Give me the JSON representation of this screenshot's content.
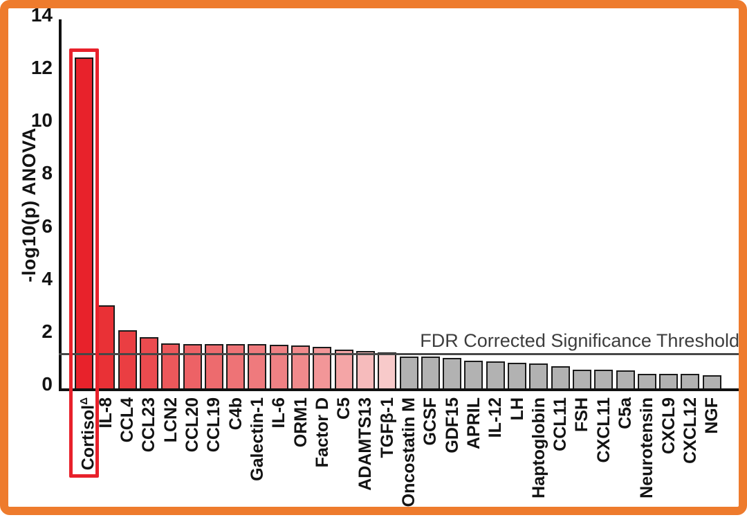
{
  "frame": {
    "border_color": "#ee7b2d",
    "background": "#ffffff"
  },
  "chart_data": {
    "type": "bar",
    "ylabel": "-log10(p) ANOVA",
    "xlabel": "",
    "ylim": [
      0,
      14
    ],
    "y_ticks": [
      0,
      2,
      4,
      6,
      8,
      10,
      12,
      14
    ],
    "grid": false,
    "legend": false,
    "categories": [
      "Cortisol",
      "IL-8",
      "CCL4",
      "CCL23",
      "LCN2",
      "CCL20",
      "CCL19",
      "C4b",
      "Galectin-1",
      "IL-6",
      "ORM1",
      "Factor D",
      "C5",
      "ADAMTS13",
      "TGFβ-1",
      "Oncostatin M",
      "GCSF",
      "GDF15",
      "APRIL",
      "IL-12",
      "LH",
      "Haptoglobin",
      "CCL11",
      "FSH",
      "CXCL11",
      "C5a",
      "Neurotensin",
      "CXCL9",
      "CXCL12",
      "NGF"
    ],
    "values": [
      12.55,
      3.15,
      2.2,
      1.95,
      1.72,
      1.68,
      1.68,
      1.68,
      1.67,
      1.65,
      1.62,
      1.57,
      1.47,
      1.41,
      1.36,
      1.22,
      1.22,
      1.15,
      1.05,
      1.02,
      0.97,
      0.94,
      0.84,
      0.72,
      0.71,
      0.68,
      0.56,
      0.55,
      0.55,
      0.5
    ],
    "bar_colors": [
      "#e8222b",
      "#e93136",
      "#ea3e42",
      "#eb4b4f",
      "#ec585b",
      "#ed6266",
      "#ed6b6e",
      "#ee7376",
      "#ef7a7d",
      "#ef8184",
      "#f08a8c",
      "#f29698",
      "#f4a5a6",
      "#f6bbbc",
      "#f8caca",
      "#b2b2b2",
      "#b2b2b2",
      "#b2b2b2",
      "#b2b2b2",
      "#b2b2b2",
      "#b2b2b2",
      "#b2b2b2",
      "#b2b2b2",
      "#b2b2b2",
      "#b2b2b2",
      "#b2b2b2",
      "#b2b2b2",
      "#b2b2b2",
      "#b2b2b2",
      "#b2b2b2"
    ],
    "bar_border_color": "#1a1a1a",
    "significant_color_range": [
      "#e8222b",
      "#f8caca"
    ],
    "nonsignificant_color": "#b2b2b2",
    "threshold_line": {
      "value": 1.3,
      "label": "FDR Corrected Significance Threshold",
      "color": "#474747"
    },
    "highlight": {
      "category": "Cortisol",
      "superscript": "Δ",
      "box_color": "#e8212b"
    }
  }
}
